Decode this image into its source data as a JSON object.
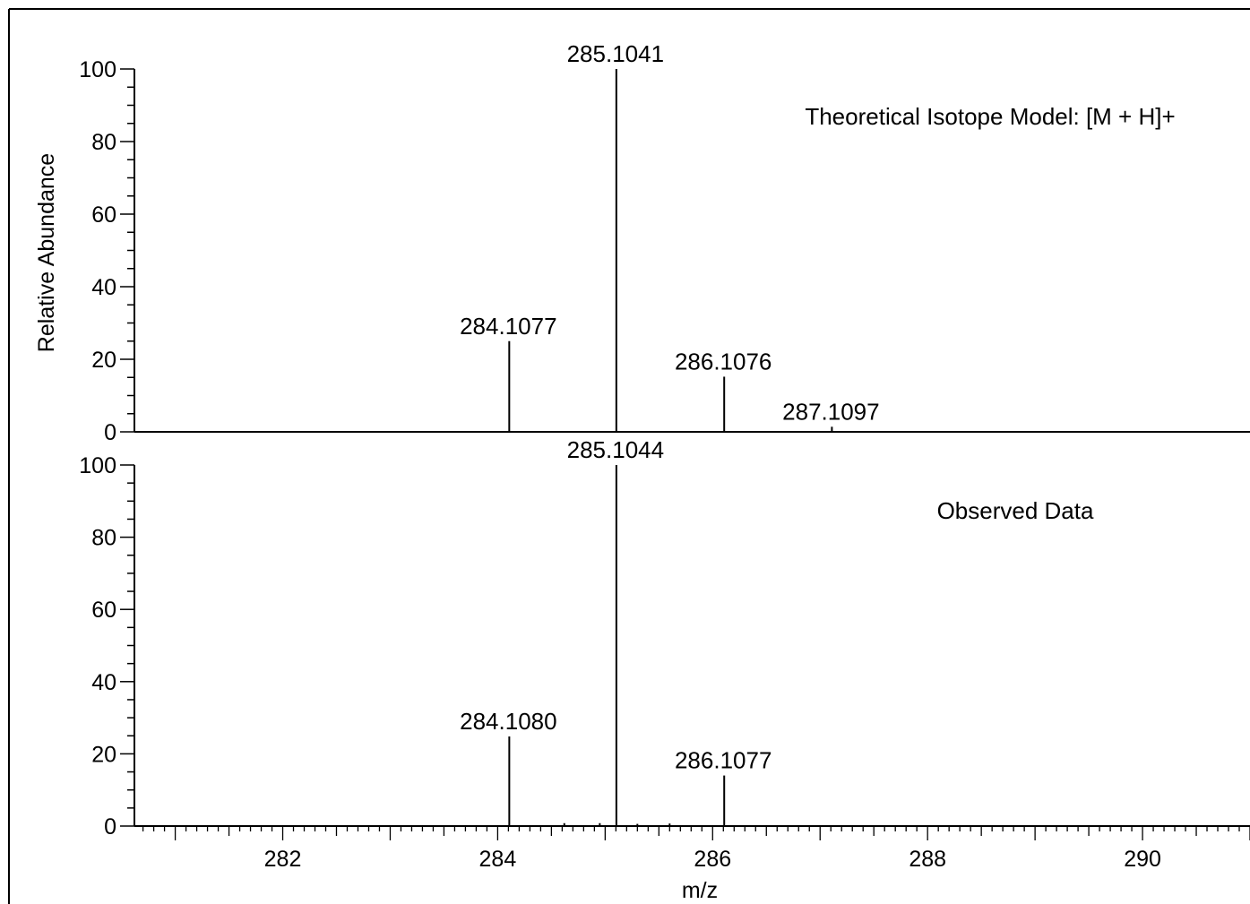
{
  "chart_data": {
    "type": "bar",
    "ylabel": "Relative Abundance",
    "xlabel": "m/z",
    "xlim": [
      280.62,
      291.0
    ],
    "x_ticks": [
      282,
      284,
      286,
      288,
      290
    ],
    "grid": false,
    "panels": [
      {
        "title": "Theoretical Isotope Model: [M + H]+",
        "ylim": [
          0,
          100
        ],
        "y_ticks": [
          0,
          20,
          40,
          60,
          80,
          100
        ],
        "peaks": [
          {
            "x": 284.1077,
            "y": 25,
            "label": "284.1077"
          },
          {
            "x": 285.1041,
            "y": 100,
            "label": "285.1041"
          },
          {
            "x": 286.1076,
            "y": 15.2,
            "label": "286.1076"
          },
          {
            "x": 287.1097,
            "y": 1.4,
            "label": "287.1097"
          }
        ]
      },
      {
        "title": "Observed Data",
        "ylim": [
          0,
          100
        ],
        "y_ticks": [
          0,
          20,
          40,
          60,
          80,
          100
        ],
        "peaks": [
          {
            "x": 284.108,
            "y": 24.8,
            "label": "284.1080"
          },
          {
            "x": 285.1044,
            "y": 100,
            "label": "285.1044"
          },
          {
            "x": 286.1077,
            "y": 14,
            "label": "286.1077"
          },
          {
            "x": 284.62,
            "y": 0.8,
            "label": ""
          },
          {
            "x": 284.95,
            "y": 0.8,
            "label": ""
          },
          {
            "x": 285.3,
            "y": 0.6,
            "label": ""
          },
          {
            "x": 285.6,
            "y": 0.7,
            "label": ""
          }
        ]
      }
    ]
  }
}
